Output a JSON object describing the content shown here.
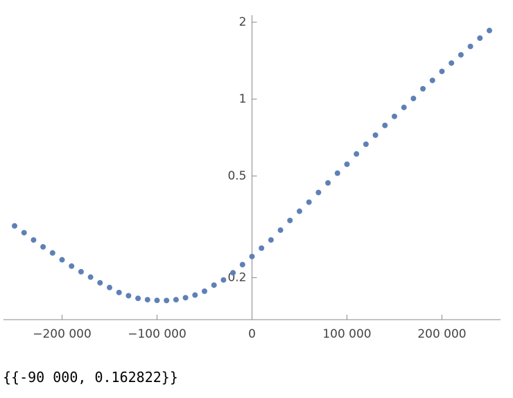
{
  "chart_data": {
    "type": "scatter",
    "log_y": true,
    "color": "#5e81b5",
    "x": [
      -250000,
      -240000,
      -230000,
      -220000,
      -210000,
      -200000,
      -190000,
      -180000,
      -170000,
      -160000,
      -150000,
      -140000,
      -130000,
      -120000,
      -110000,
      -100000,
      -90000,
      -80000,
      -70000,
      -60000,
      -50000,
      -40000,
      -30000,
      -20000,
      -10000,
      0,
      10000,
      20000,
      30000,
      40000,
      50000,
      60000,
      70000,
      80000,
      90000,
      100000,
      110000,
      120000,
      130000,
      140000,
      150000,
      160000,
      170000,
      180000,
      190000,
      200000,
      210000,
      220000,
      230000,
      240000,
      250000
    ],
    "values": [
      0.319,
      0.3,
      0.281,
      0.264,
      0.25,
      0.235,
      0.222,
      0.211,
      0.201,
      0.191,
      0.183,
      0.175,
      0.17,
      0.166,
      0.164,
      0.163,
      0.162822,
      0.164,
      0.167,
      0.171,
      0.177,
      0.187,
      0.196,
      0.209,
      0.225,
      0.242,
      0.261,
      0.281,
      0.307,
      0.335,
      0.364,
      0.395,
      0.431,
      0.47,
      0.513,
      0.556,
      0.61,
      0.666,
      0.723,
      0.789,
      0.856,
      0.928,
      1.006,
      1.098,
      1.184,
      1.284,
      1.384,
      1.491,
      1.608,
      1.733,
      1.856
    ],
    "xlim": [
      -261700,
      261700
    ],
    "ylim": [
      0.137,
      2.13
    ],
    "xticks": [
      {
        "value": -200000,
        "label": "−200 000"
      },
      {
        "value": -100000,
        "label": "−100 000"
      },
      0,
      {
        "value": 100000,
        "label": "100 000"
      },
      {
        "value": 200000,
        "label": "200 000"
      }
    ],
    "yticks": [
      0.2,
      0.5,
      1,
      2
    ]
  },
  "output": "{{-90 000, 0.162822}}"
}
